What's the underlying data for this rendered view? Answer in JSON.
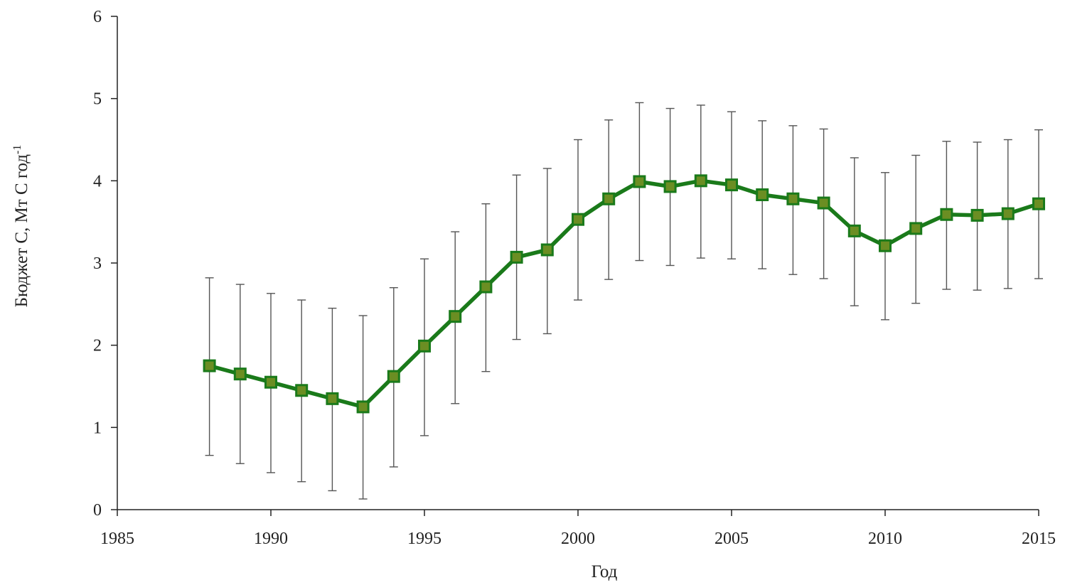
{
  "chart_data": {
    "type": "line",
    "title": "",
    "xlabel": "Год",
    "ylabel_main": "Бюджет C, Мт С год",
    "ylabel_sup": "-1",
    "xlim": [
      1985,
      2015
    ],
    "ylim": [
      0,
      6
    ],
    "x_ticks": [
      1985,
      1990,
      1995,
      2000,
      2005,
      2010,
      2015
    ],
    "y_ticks": [
      0,
      1,
      2,
      3,
      4,
      5,
      6
    ],
    "grid": false,
    "legend": "none",
    "series": [
      {
        "color": "#1a7a1a",
        "marker_fill": "#6b8e23",
        "errorbar_color": "#555555",
        "x": [
          1988,
          1989,
          1990,
          1991,
          1992,
          1993,
          1994,
          1995,
          1996,
          1997,
          1998,
          1999,
          2000,
          2001,
          2002,
          2003,
          2004,
          2005,
          2006,
          2007,
          2008,
          2009,
          2010,
          2011,
          2012,
          2013,
          2014,
          2015
        ],
        "y": [
          1.75,
          1.65,
          1.55,
          1.45,
          1.35,
          1.25,
          1.62,
          1.99,
          2.35,
          2.71,
          3.07,
          3.16,
          3.53,
          3.78,
          3.99,
          3.93,
          4.0,
          3.95,
          3.83,
          3.78,
          3.73,
          3.39,
          3.21,
          3.42,
          3.59,
          3.58,
          3.6,
          3.72
        ],
        "err_low": [
          0.66,
          0.56,
          0.45,
          0.34,
          0.23,
          0.13,
          0.52,
          0.9,
          1.29,
          1.68,
          2.07,
          2.14,
          2.55,
          2.8,
          3.03,
          2.97,
          3.06,
          3.05,
          2.93,
          2.86,
          2.81,
          2.48,
          2.31,
          2.51,
          2.68,
          2.67,
          2.69,
          2.81
        ],
        "err_high": [
          2.82,
          2.74,
          2.63,
          2.55,
          2.45,
          2.36,
          2.7,
          3.05,
          3.38,
          3.72,
          4.07,
          4.15,
          4.5,
          4.74,
          4.95,
          4.88,
          4.92,
          4.84,
          4.73,
          4.67,
          4.63,
          4.28,
          4.1,
          4.31,
          4.48,
          4.47,
          4.5,
          4.62
        ]
      }
    ]
  }
}
